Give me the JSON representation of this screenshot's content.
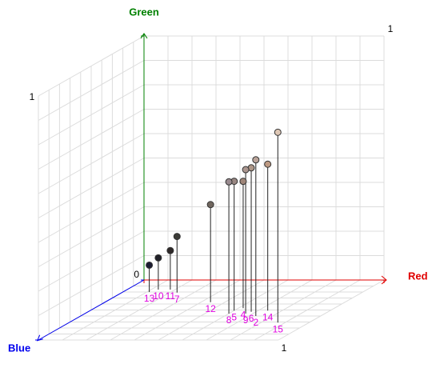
{
  "chart_data": {
    "type": "scatter3d",
    "x_label": "Red",
    "y_label": "Green",
    "z_label": "Blue",
    "x_color": "#e00000",
    "y_color": "#008000",
    "z_color": "#0000ee",
    "xlim": [
      0,
      1
    ],
    "ylim": [
      0,
      1
    ],
    "zlim": [
      0,
      1
    ],
    "xticks": [
      0,
      1
    ],
    "yticks": [
      0,
      1
    ],
    "zticks": [
      0,
      1
    ],
    "grid": true,
    "grid_divisions": 10,
    "label_color": "#e000e0",
    "point_labels": [
      "15",
      "14",
      "2",
      "6",
      "9",
      "4",
      "5",
      "8",
      "12",
      "7",
      "11",
      "10",
      "13"
    ],
    "x": [
      0.87,
      0.74,
      0.73,
      0.68,
      0.67,
      0.62,
      0.6,
      0.6,
      0.44,
      0.23,
      0.18,
      0.13,
      0.11
    ],
    "y": [
      0.78,
      0.6,
      0.64,
      0.59,
      0.59,
      0.52,
      0.53,
      0.54,
      0.4,
      0.23,
      0.16,
      0.13,
      0.11
    ],
    "z": [
      0.71,
      0.51,
      0.6,
      0.53,
      0.56,
      0.47,
      0.51,
      0.56,
      0.37,
      0.21,
      0.16,
      0.16,
      0.2
    ]
  }
}
